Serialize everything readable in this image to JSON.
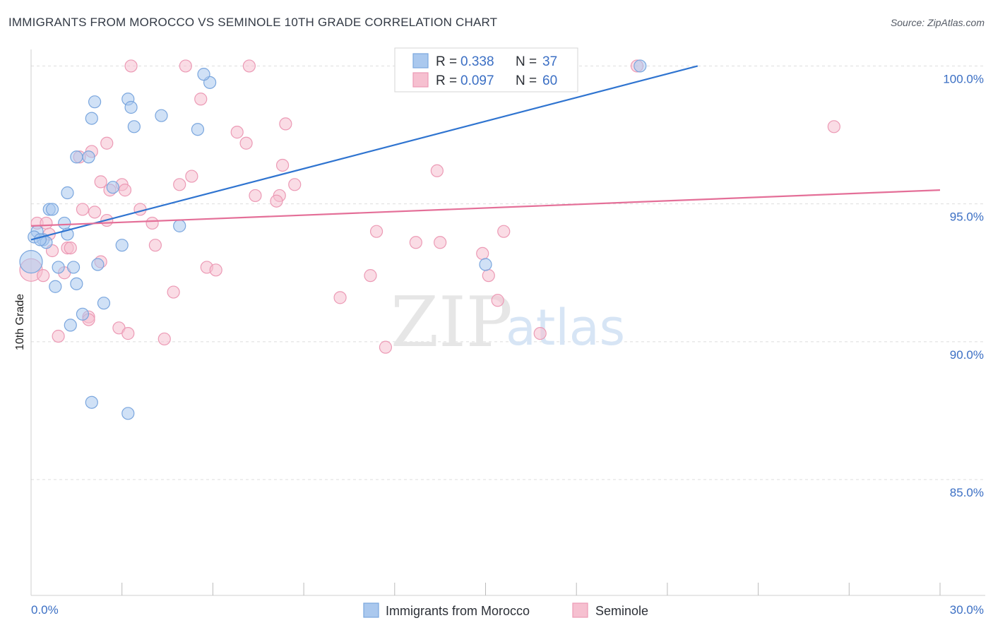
{
  "title": "IMMIGRANTS FROM MOROCCO VS SEMINOLE 10TH GRADE CORRELATION CHART",
  "source": "Source: ZipAtlas.com",
  "watermark": {
    "part1": "ZIP",
    "part2": "atlas"
  },
  "colors": {
    "blue_fill": "#aac8ee",
    "blue_stroke": "#7aa6de",
    "blue_line": "#2f74d0",
    "pink_fill": "#f6c0d0",
    "pink_stroke": "#ec9ab5",
    "pink_line": "#e46f98",
    "tick_text": "#3b6fc4",
    "grid": "#dddddd"
  },
  "legend": {
    "rows": [
      {
        "r_label": "R =",
        "r_value": "0.338",
        "n_label": "N =",
        "n_value": "37"
      },
      {
        "r_label": "R =",
        "r_value": "0.097",
        "n_label": "N =",
        "n_value": "60"
      }
    ]
  },
  "chart_data": {
    "type": "scatter",
    "xlabel": "",
    "ylabel": "10th Grade",
    "xlim": [
      0,
      30
    ],
    "ylim": [
      80.8,
      100.6
    ],
    "x_tick_labels": [
      {
        "value": 0,
        "label": "0.0%"
      },
      {
        "value": 30,
        "label": "30.0%"
      }
    ],
    "x_minor_ticks": [
      3,
      6,
      9,
      12,
      15,
      18,
      21,
      24,
      27,
      30
    ],
    "y_ticks": [
      {
        "value": 100,
        "label": "100.0%"
      },
      {
        "value": 95,
        "label": "95.0%"
      },
      {
        "value": 90,
        "label": "90.0%"
      },
      {
        "value": 85,
        "label": "85.0%"
      }
    ],
    "grid": true,
    "series": [
      {
        "name": "Immigrants from Morocco",
        "color": "blue",
        "trend": {
          "x": [
            0,
            22.0
          ],
          "y": [
            93.7,
            100.0
          ]
        },
        "points": [
          {
            "x": 5.9,
            "y": 99.4
          },
          {
            "x": 5.7,
            "y": 99.7
          },
          {
            "x": 3.2,
            "y": 98.8
          },
          {
            "x": 3.3,
            "y": 98.5
          },
          {
            "x": 2.1,
            "y": 98.7
          },
          {
            "x": 4.3,
            "y": 98.2
          },
          {
            "x": 2.0,
            "y": 98.1
          },
          {
            "x": 3.4,
            "y": 97.8
          },
          {
            "x": 5.5,
            "y": 97.7
          },
          {
            "x": 1.5,
            "y": 96.7
          },
          {
            "x": 1.9,
            "y": 96.7
          },
          {
            "x": 2.7,
            "y": 95.6
          },
          {
            "x": 1.2,
            "y": 95.4
          },
          {
            "x": 0.6,
            "y": 94.8
          },
          {
            "x": 0.7,
            "y": 94.8
          },
          {
            "x": 1.1,
            "y": 94.3
          },
          {
            "x": 4.9,
            "y": 94.2
          },
          {
            "x": 0.2,
            "y": 94.0
          },
          {
            "x": 1.2,
            "y": 93.9
          },
          {
            "x": 0.4,
            "y": 93.7
          },
          {
            "x": 0.5,
            "y": 93.6
          },
          {
            "x": 3.0,
            "y": 93.5
          },
          {
            "x": 0.0,
            "y": 92.9
          },
          {
            "x": 0.9,
            "y": 92.7
          },
          {
            "x": 1.4,
            "y": 92.7
          },
          {
            "x": 2.2,
            "y": 92.8
          },
          {
            "x": 15.0,
            "y": 92.8
          },
          {
            "x": 0.8,
            "y": 92.0
          },
          {
            "x": 1.5,
            "y": 92.1
          },
          {
            "x": 2.4,
            "y": 91.4
          },
          {
            "x": 1.7,
            "y": 91.0
          },
          {
            "x": 1.3,
            "y": 90.6
          },
          {
            "x": 2.0,
            "y": 87.8
          },
          {
            "x": 3.2,
            "y": 87.4
          },
          {
            "x": 20.1,
            "y": 100.0
          },
          {
            "x": 0.1,
            "y": 93.8
          },
          {
            "x": 0.3,
            "y": 93.7
          }
        ]
      },
      {
        "name": "Seminole",
        "color": "pink",
        "trend": {
          "x": [
            0,
            30
          ],
          "y": [
            94.2,
            95.5
          ]
        },
        "points": [
          {
            "x": 3.3,
            "y": 100.0
          },
          {
            "x": 5.1,
            "y": 100.0
          },
          {
            "x": 7.2,
            "y": 100.0
          },
          {
            "x": 20.0,
            "y": 100.0
          },
          {
            "x": 5.6,
            "y": 98.8
          },
          {
            "x": 8.4,
            "y": 97.9
          },
          {
            "x": 26.5,
            "y": 97.8
          },
          {
            "x": 6.8,
            "y": 97.6
          },
          {
            "x": 2.5,
            "y": 97.2
          },
          {
            "x": 7.1,
            "y": 97.2
          },
          {
            "x": 2.0,
            "y": 96.9
          },
          {
            "x": 1.6,
            "y": 96.7
          },
          {
            "x": 8.3,
            "y": 96.4
          },
          {
            "x": 13.4,
            "y": 96.2
          },
          {
            "x": 2.3,
            "y": 95.8
          },
          {
            "x": 5.3,
            "y": 96.0
          },
          {
            "x": 4.9,
            "y": 95.7
          },
          {
            "x": 3.0,
            "y": 95.7
          },
          {
            "x": 8.7,
            "y": 95.7
          },
          {
            "x": 2.6,
            "y": 95.5
          },
          {
            "x": 3.1,
            "y": 95.5
          },
          {
            "x": 7.4,
            "y": 95.3
          },
          {
            "x": 8.2,
            "y": 95.3
          },
          {
            "x": 8.1,
            "y": 95.1
          },
          {
            "x": 1.7,
            "y": 94.8
          },
          {
            "x": 2.1,
            "y": 94.7
          },
          {
            "x": 3.6,
            "y": 94.8
          },
          {
            "x": 2.5,
            "y": 94.4
          },
          {
            "x": 0.2,
            "y": 94.3
          },
          {
            "x": 0.5,
            "y": 94.3
          },
          {
            "x": 4.0,
            "y": 94.3
          },
          {
            "x": 11.4,
            "y": 94.0
          },
          {
            "x": 15.6,
            "y": 94.0
          },
          {
            "x": 0.6,
            "y": 93.9
          },
          {
            "x": 4.1,
            "y": 93.5
          },
          {
            "x": 12.7,
            "y": 93.6
          },
          {
            "x": 13.5,
            "y": 93.6
          },
          {
            "x": 1.2,
            "y": 93.4
          },
          {
            "x": 1.3,
            "y": 93.4
          },
          {
            "x": 0.7,
            "y": 93.3
          },
          {
            "x": 14.9,
            "y": 93.2
          },
          {
            "x": 2.3,
            "y": 92.9
          },
          {
            "x": 5.8,
            "y": 92.7
          },
          {
            "x": 6.1,
            "y": 92.6
          },
          {
            "x": 0.0,
            "y": 92.6
          },
          {
            "x": 1.1,
            "y": 92.5
          },
          {
            "x": 11.2,
            "y": 92.4
          },
          {
            "x": 0.4,
            "y": 92.4
          },
          {
            "x": 15.1,
            "y": 92.4
          },
          {
            "x": 4.7,
            "y": 91.8
          },
          {
            "x": 10.2,
            "y": 91.6
          },
          {
            "x": 15.4,
            "y": 91.5
          },
          {
            "x": 1.9,
            "y": 90.9
          },
          {
            "x": 2.9,
            "y": 90.5
          },
          {
            "x": 3.2,
            "y": 90.3
          },
          {
            "x": 0.9,
            "y": 90.2
          },
          {
            "x": 4.4,
            "y": 90.1
          },
          {
            "x": 16.8,
            "y": 90.3
          },
          {
            "x": 11.7,
            "y": 89.8
          },
          {
            "x": 1.9,
            "y": 90.8
          }
        ]
      }
    ]
  },
  "bottom_legend": [
    {
      "label": "Immigrants from Morocco",
      "color": "blue"
    },
    {
      "label": "Seminole",
      "color": "pink"
    }
  ]
}
